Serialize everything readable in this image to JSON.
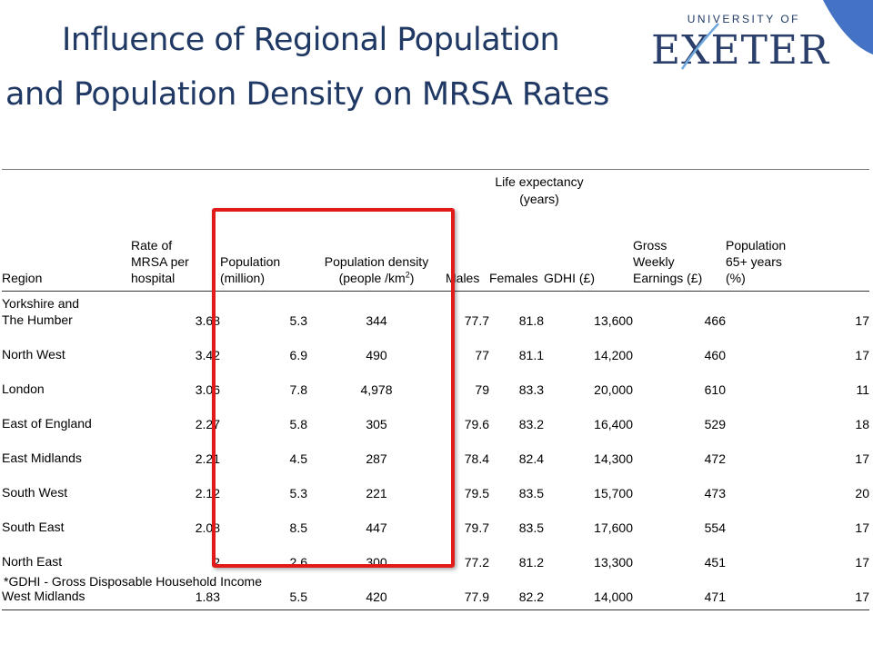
{
  "slide": {
    "title_line1": "Influence of Regional Population",
    "title_line2": "and Population Density on MRSA Rates",
    "accent_color": "#4472c4",
    "highlight_color": "#e11a1a"
  },
  "logo": {
    "top_text": "UNIVERSITY OF",
    "main_text": "EXETER"
  },
  "table": {
    "group_header": {
      "line1": "Life expectancy",
      "line2": "(years)"
    },
    "headers": {
      "region": "Region",
      "mrsa": [
        "Rate of",
        "MRSA per",
        "hospital"
      ],
      "population": [
        "Population",
        "(million)"
      ],
      "density_line1": "Population density",
      "density_line2_prefix": "(people /km",
      "density_sup": "2",
      "density_line2_suffix": ")",
      "males": "Males",
      "females": "Females",
      "gdhi": "GDHI (£)",
      "earnings": [
        "Gross",
        "Weekly",
        "Earnings (£)"
      ],
      "over65": [
        "Population",
        "65+ years",
        "(%)"
      ]
    },
    "rows": [
      {
        "region": [
          "Yorkshire and",
          "The Humber"
        ],
        "mrsa": "3.68",
        "population": "5.3",
        "density": "344",
        "males": "77.7",
        "females": "81.8",
        "gdhi": "13,600",
        "earnings": "466",
        "over65": "17"
      },
      {
        "region": [
          "North West"
        ],
        "mrsa": "3.42",
        "population": "6.9",
        "density": "490",
        "males": "77",
        "females": "81.1",
        "gdhi": "14,200",
        "earnings": "460",
        "over65": "17"
      },
      {
        "region": [
          "London"
        ],
        "mrsa": "3.06",
        "population": "7.8",
        "density": "4,978",
        "males": "79",
        "females": "83.3",
        "gdhi": "20,000",
        "earnings": "610",
        "over65": "11"
      },
      {
        "region": [
          "East of England"
        ],
        "mrsa": "2.27",
        "population": "5.8",
        "density": "305",
        "males": "79.6",
        "females": "83.2",
        "gdhi": "16,400",
        "earnings": "529",
        "over65": "18"
      },
      {
        "region": [
          "East Midlands"
        ],
        "mrsa": "2.21",
        "population": "4.5",
        "density": "287",
        "males": "78.4",
        "females": "82.4",
        "gdhi": "14,300",
        "earnings": "472",
        "over65": "17"
      },
      {
        "region": [
          "South West"
        ],
        "mrsa": "2.12",
        "population": "5.3",
        "density": "221",
        "males": "79.5",
        "females": "83.5",
        "gdhi": "15,700",
        "earnings": "473",
        "over65": "20"
      },
      {
        "region": [
          "South East"
        ],
        "mrsa": "2.08",
        "population": "8.5",
        "density": "447",
        "males": "79.7",
        "females": "83.5",
        "gdhi": "17,600",
        "earnings": "554",
        "over65": "17"
      },
      {
        "region": [
          "North East"
        ],
        "mrsa": "2",
        "population": "2.6",
        "density": "300",
        "males": "77.2",
        "females": "81.2",
        "gdhi": "13,300",
        "earnings": "451",
        "over65": "17"
      },
      {
        "region": [
          "West Midlands"
        ],
        "mrsa": "1.83",
        "population": "5.5",
        "density": "420",
        "males": "77.9",
        "females": "82.2",
        "gdhi": "14,000",
        "earnings": "471",
        "over65": "17"
      }
    ],
    "footnote": "*GDHI - Gross Disposable Household Income"
  }
}
